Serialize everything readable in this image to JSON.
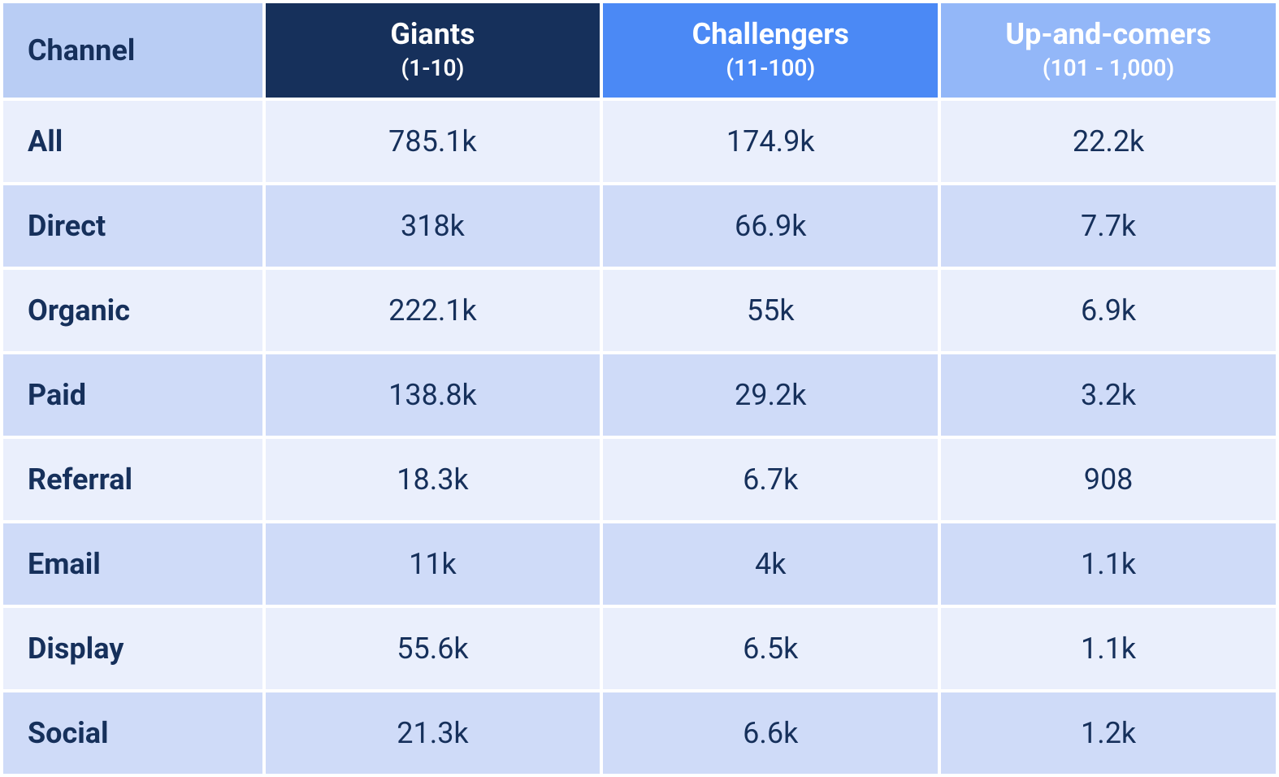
{
  "table": {
    "type": "table",
    "colors": {
      "text_primary": "#16305b",
      "header_channel_bg": "#b9cdf4",
      "header_tier1_bg": "#16305b",
      "header_tier2_bg": "#4b89f5",
      "header_tier3_bg": "#93b7f8",
      "row_bg_light": "#eaeffc",
      "row_bg_dark": "#cfdbf8",
      "header_text_light": "#ffffff"
    },
    "typography": {
      "header_title_fontsize": 36,
      "header_subtitle_fontsize": 28,
      "row_label_fontsize": 36,
      "cell_fontsize": 36,
      "header_weight": 700,
      "label_weight": 700,
      "cell_weight": 400
    },
    "layout": {
      "header_row_height": 116,
      "data_row_height": 100,
      "cell_spacing": 4,
      "col_widths_pct": [
        20.5,
        26.5,
        26.5,
        26.5
      ]
    },
    "columns": [
      {
        "title": "Channel",
        "subtitle": ""
      },
      {
        "title": "Giants",
        "subtitle": "(1-10)"
      },
      {
        "title": "Challengers",
        "subtitle": "(11-100)"
      },
      {
        "title": "Up-and-comers",
        "subtitle": "(101 - 1,000)"
      }
    ],
    "rows": [
      {
        "label": "All",
        "cells": [
          "785.1k",
          "174.9k",
          "22.2k"
        ]
      },
      {
        "label": "Direct",
        "cells": [
          "318k",
          "66.9k",
          "7.7k"
        ]
      },
      {
        "label": "Organic",
        "cells": [
          "222.1k",
          "55k",
          "6.9k"
        ]
      },
      {
        "label": "Paid",
        "cells": [
          "138.8k",
          "29.2k",
          "3.2k"
        ]
      },
      {
        "label": "Referral",
        "cells": [
          "18.3k",
          "6.7k",
          "908"
        ]
      },
      {
        "label": "Email",
        "cells": [
          "11k",
          "4k",
          "1.1k"
        ]
      },
      {
        "label": "Display",
        "cells": [
          "55.6k",
          "6.5k",
          "1.1k"
        ]
      },
      {
        "label": "Social",
        "cells": [
          "21.3k",
          "6.6k",
          "1.2k"
        ]
      }
    ]
  }
}
